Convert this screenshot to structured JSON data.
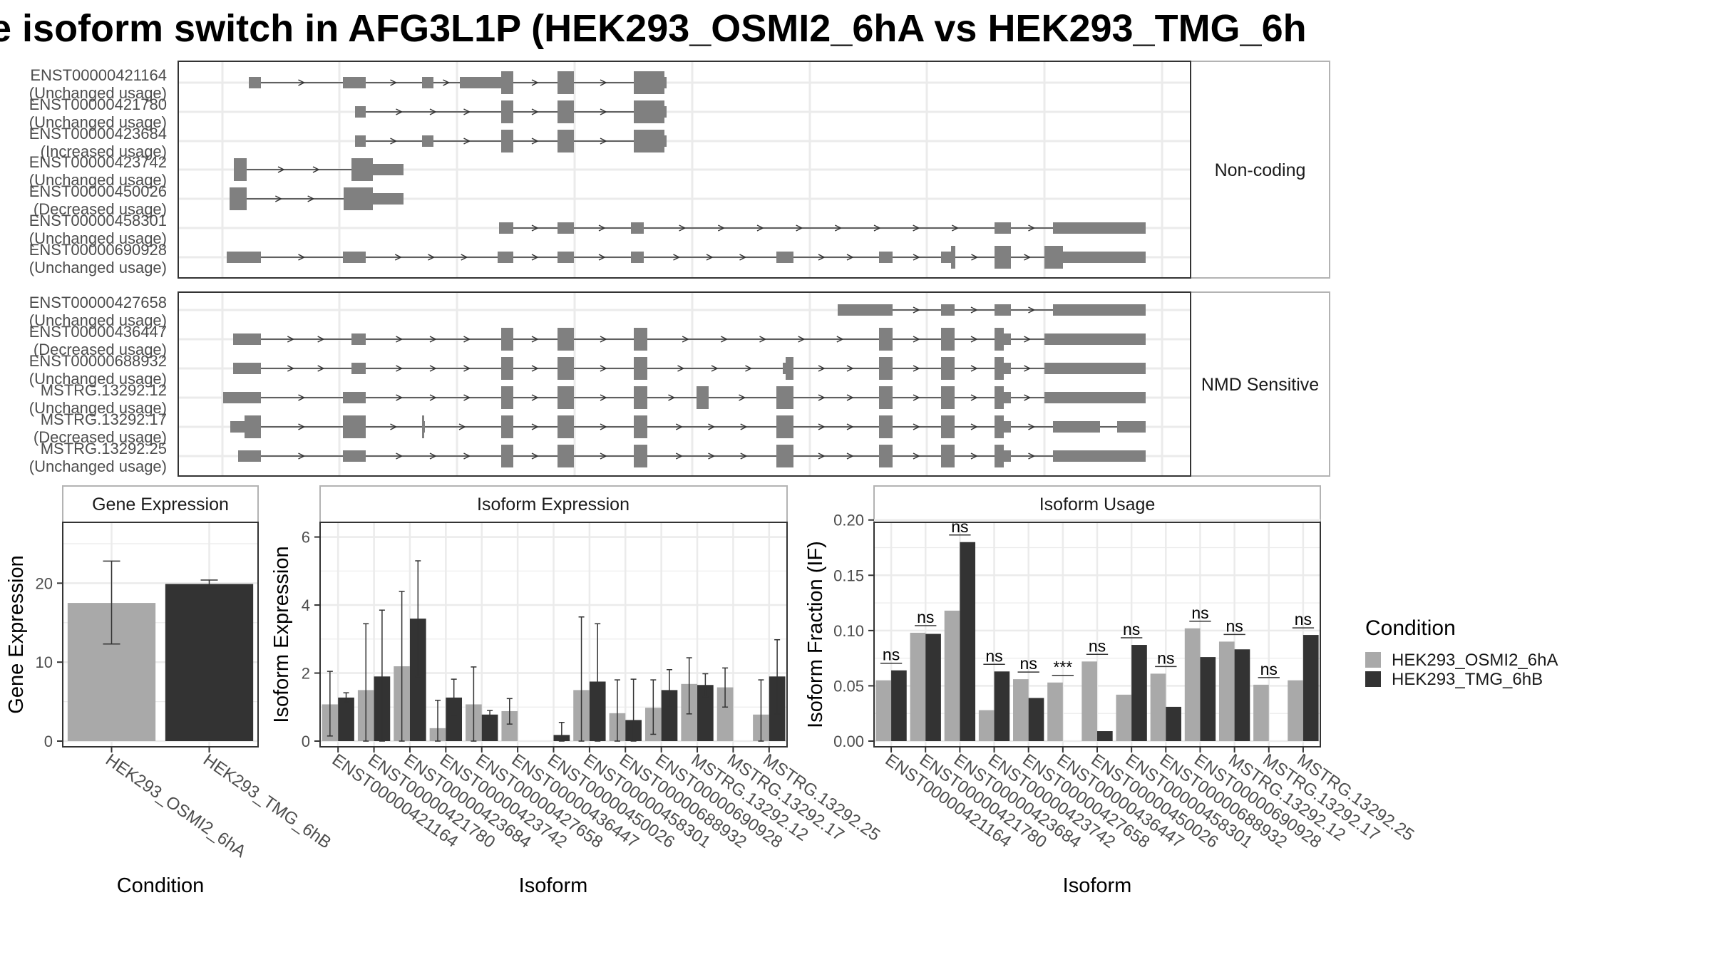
{
  "title": "e isoform switch in AFG3L1P (HEK293_OSMI2_6hA vs HEK293_TMG_6h",
  "colors": {
    "osmi": "#a9a9a9",
    "tmg": "#333333",
    "transcript": "#808080",
    "panel_border": "#333333",
    "strip_fill": "#ffffff",
    "grid": "#ebebeb",
    "text": "#4d4d4d"
  },
  "structure": {
    "groups": [
      {
        "label": "Non-coding",
        "isoforms": [
          {
            "id": "ENST00000421164",
            "usage": "(Unchanged usage)"
          },
          {
            "id": "ENST00000421780",
            "usage": "(Unchanged usage)"
          },
          {
            "id": "ENST00000423684",
            "usage": "(Increased usage)"
          },
          {
            "id": "ENST00000423742",
            "usage": "(Unchanged usage)"
          },
          {
            "id": "ENST00000450026",
            "usage": "(Decreased usage)"
          },
          {
            "id": "ENST00000458301",
            "usage": "(Unchanged usage)"
          },
          {
            "id": "ENST00000690928",
            "usage": "(Unchanged usage)"
          }
        ]
      },
      {
        "label": "NMD Sensitive",
        "isoforms": [
          {
            "id": "ENST00000427658",
            "usage": "(Unchanged usage)"
          },
          {
            "id": "ENST00000436447",
            "usage": "(Decreased usage)"
          },
          {
            "id": "ENST00000688932",
            "usage": "(Unchanged usage)"
          },
          {
            "id": "MSTRG.13292.12",
            "usage": "(Unchanged usage)"
          },
          {
            "id": "MSTRG.13292.17",
            "usage": "(Decreased usage)"
          },
          {
            "id": "MSTRG.13292.25",
            "usage": "(Unchanged usage)"
          }
        ]
      }
    ]
  },
  "chart_data": [
    {
      "type": "bar",
      "strip": "Gene Expression",
      "ylabel": "Gene Expression",
      "xlabel": "Condition",
      "ylim": [
        0,
        28
      ],
      "yticks": [
        "0",
        "10",
        "20"
      ],
      "categories": [
        "HEK293_OSMI2_6hA",
        "HEK293_TMG_6hB"
      ],
      "values": [
        17.5,
        19.9
      ],
      "error_low": [
        12.3,
        19.4
      ],
      "error_high": [
        22.8,
        20.4
      ]
    },
    {
      "type": "bar",
      "strip": "Isoform Expression",
      "ylabel": "Isoform Expression",
      "xlabel": "Isoform",
      "ylim": [
        0,
        6.5
      ],
      "yticks": [
        "0",
        "2",
        "4",
        "6"
      ],
      "categories": [
        "ENST00000421164",
        "ENST00000421780",
        "ENST00000423684",
        "ENST00000423742",
        "ENST00000427658",
        "ENST00000436447",
        "ENST00000450026",
        "ENST00000458301",
        "ENST00000688932",
        "ENST00000690928",
        "MSTRG.13292.12",
        "MSTRG.13292.17",
        "MSTRG.13292.25"
      ],
      "series": [
        {
          "name": "HEK293_OSMI2_6hA",
          "values": [
            1.08,
            1.5,
            2.2,
            0.38,
            1.08,
            0.88,
            0.0,
            1.5,
            0.82,
            0.98,
            1.68,
            1.58,
            0.78
          ],
          "error_low": [
            0.15,
            0.0,
            0.0,
            0.0,
            0.0,
            0.5,
            0.0,
            0.0,
            0.0,
            0.2,
            0.8,
            1.0,
            0.0
          ],
          "error_high": [
            2.05,
            3.45,
            4.4,
            1.2,
            2.18,
            1.25,
            0.0,
            3.65,
            1.8,
            1.8,
            2.45,
            2.15,
            1.8
          ]
        },
        {
          "name": "HEK293_TMG_6hB",
          "values": [
            1.28,
            1.9,
            3.6,
            1.28,
            0.78,
            0.0,
            0.18,
            1.75,
            0.62,
            1.5,
            1.65,
            0.0,
            1.9
          ],
          "error_low": [
            1.15,
            0.0,
            1.9,
            0.75,
            0.65,
            0.0,
            0.0,
            0.0,
            0.0,
            1.0,
            1.3,
            0.0,
            0.8
          ],
          "error_high": [
            1.42,
            3.85,
            5.3,
            1.82,
            0.9,
            0.0,
            0.55,
            3.45,
            1.82,
            2.1,
            1.98,
            0.0,
            2.98
          ]
        }
      ]
    },
    {
      "type": "bar",
      "strip": "Isoform Usage",
      "ylabel": "Isoform Fraction (IF)",
      "xlabel": "Isoform",
      "ylim": [
        0,
        0.2
      ],
      "yticks": [
        "0.00",
        "0.05",
        "0.10",
        "0.15",
        "0.20"
      ],
      "categories": [
        "ENST00000421164",
        "ENST00000421780",
        "ENST00000423684",
        "ENST00000423742",
        "ENST00000427658",
        "ENST00000436447",
        "ENST00000450026",
        "ENST00000458301",
        "ENST00000688932",
        "ENST00000690928",
        "MSTRG.13292.12",
        "MSTRG.13292.17",
        "MSTRG.13292.25"
      ],
      "significance": [
        "ns",
        "ns",
        "ns",
        "ns",
        "ns",
        "***",
        "ns",
        "ns",
        "ns",
        "ns",
        "ns",
        "ns",
        "ns"
      ],
      "series": [
        {
          "name": "HEK293_OSMI2_6hA",
          "values": [
            0.055,
            0.098,
            0.118,
            0.028,
            0.056,
            0.053,
            0.072,
            0.042,
            0.061,
            0.102,
            0.09,
            0.051,
            0.055
          ]
        },
        {
          "name": "HEK293_TMG_6hB",
          "values": [
            0.064,
            0.097,
            0.18,
            0.063,
            0.039,
            0.0,
            0.009,
            0.087,
            0.031,
            0.076,
            0.083,
            0.0,
            0.096
          ]
        }
      ]
    }
  ],
  "legend": {
    "title": "Condition",
    "items": [
      "HEK293_OSMI2_6hA",
      "HEK293_TMG_6hB"
    ]
  }
}
